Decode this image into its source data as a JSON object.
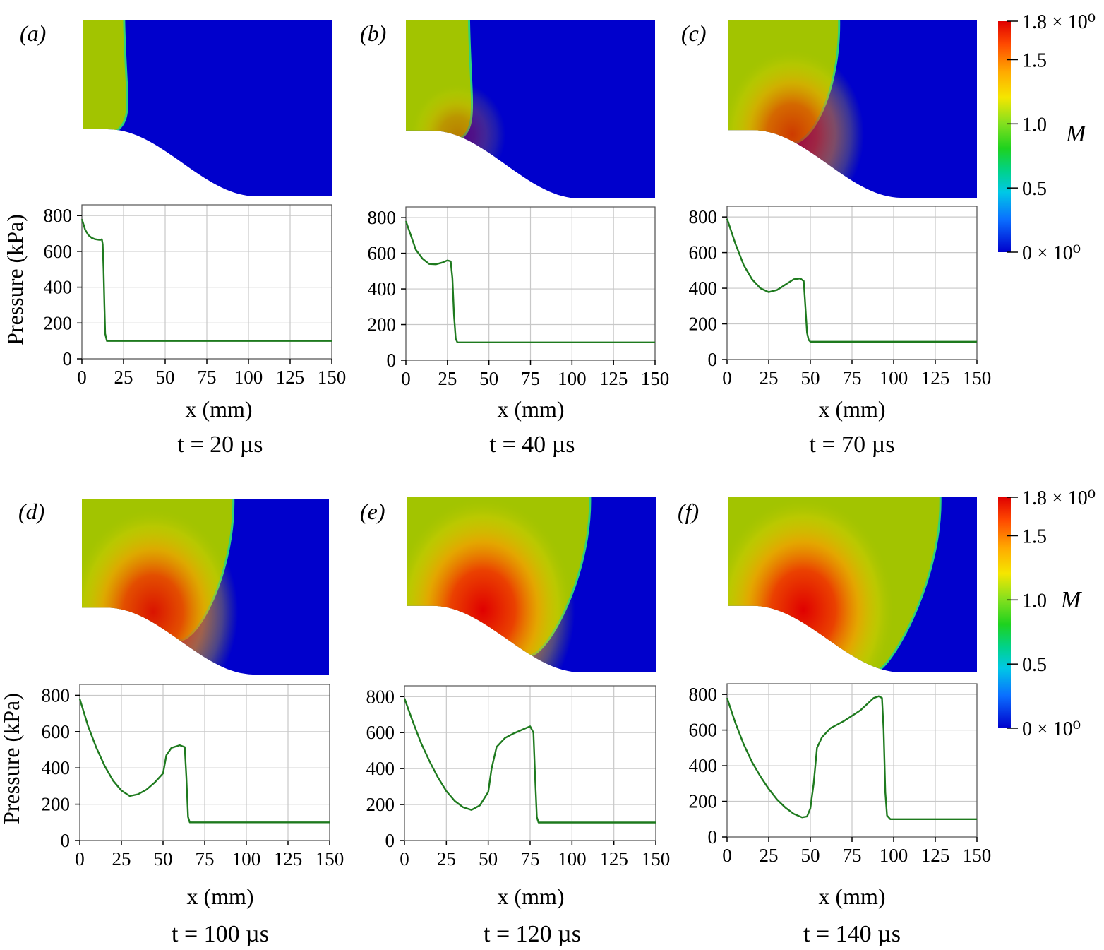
{
  "chart_data": [
    {
      "type": "line",
      "panel_label": "(a)",
      "time_label": "t = 20 µs",
      "xlabel": "x (mm)",
      "ylabel": "Pressure (kPa)",
      "xlim": [
        0,
        150
      ],
      "ylim": [
        0,
        860
      ],
      "xticks": [
        0,
        25,
        50,
        75,
        100,
        125,
        150
      ],
      "yticks": [
        0,
        200,
        400,
        600,
        800
      ],
      "grid": true,
      "color": "#1e7a1e",
      "series": [
        {
          "x": [
            0,
            2,
            4,
            6,
            8,
            10,
            11,
            12,
            12.5,
            13,
            13.5,
            14,
            15,
            17,
            20,
            30,
            150
          ],
          "y": [
            780,
            720,
            690,
            675,
            668,
            665,
            664,
            668,
            640,
            500,
            300,
            140,
            100,
            100,
            100,
            100,
            100
          ]
        }
      ]
    },
    {
      "type": "line",
      "panel_label": "(b)",
      "time_label": "t = 40 µs",
      "xlabel": "x (mm)",
      "ylabel": "",
      "xlim": [
        0,
        150
      ],
      "ylim": [
        0,
        860
      ],
      "xticks": [
        0,
        25,
        50,
        75,
        100,
        125,
        150
      ],
      "yticks": [
        0,
        200,
        400,
        600,
        800
      ],
      "grid": true,
      "color": "#1e7a1e",
      "series": [
        {
          "x": [
            0,
            3,
            6,
            10,
            14,
            18,
            22,
            25,
            27,
            28,
            29,
            30,
            31,
            33,
            40,
            150
          ],
          "y": [
            780,
            700,
            620,
            570,
            540,
            538,
            548,
            560,
            555,
            460,
            250,
            120,
            100,
            100,
            100,
            100
          ]
        }
      ]
    },
    {
      "type": "line",
      "panel_label": "(c)",
      "time_label": "t = 70 µs",
      "xlabel": "x (mm)",
      "ylabel": "",
      "xlim": [
        0,
        150
      ],
      "ylim": [
        0,
        860
      ],
      "xticks": [
        0,
        25,
        50,
        75,
        100,
        125,
        150
      ],
      "yticks": [
        0,
        200,
        400,
        600,
        800
      ],
      "grid": true,
      "color": "#1e7a1e",
      "series": [
        {
          "x": [
            0,
            5,
            10,
            15,
            20,
            25,
            30,
            35,
            40,
            44,
            46,
            47,
            48,
            49,
            50,
            52,
            60,
            150
          ],
          "y": [
            790,
            650,
            530,
            450,
            400,
            378,
            390,
            420,
            450,
            455,
            440,
            300,
            150,
            110,
            100,
            100,
            100,
            100
          ]
        }
      ]
    },
    {
      "type": "line",
      "panel_label": "(d)",
      "time_label": "t = 100 µs",
      "xlabel": "x (mm)",
      "ylabel": "Pressure (kPa)",
      "xlim": [
        0,
        150
      ],
      "ylim": [
        0,
        860
      ],
      "xticks": [
        0,
        25,
        50,
        75,
        100,
        125,
        150
      ],
      "yticks": [
        0,
        200,
        400,
        600,
        800
      ],
      "grid": true,
      "color": "#1e7a1e",
      "series": [
        {
          "x": [
            0,
            5,
            10,
            15,
            20,
            25,
            30,
            35,
            40,
            45,
            50,
            52,
            55,
            60,
            63,
            64,
            65,
            66,
            70,
            150
          ],
          "y": [
            780,
            630,
            510,
            410,
            330,
            275,
            245,
            255,
            280,
            320,
            370,
            470,
            510,
            525,
            515,
            350,
            130,
            100,
            100,
            100
          ]
        }
      ]
    },
    {
      "type": "line",
      "panel_label": "(e)",
      "time_label": "t = 120 µs",
      "xlabel": "x (mm)",
      "ylabel": "",
      "xlim": [
        0,
        150
      ],
      "ylim": [
        0,
        860
      ],
      "xticks": [
        0,
        25,
        50,
        75,
        100,
        125,
        150
      ],
      "yticks": [
        0,
        200,
        400,
        600,
        800
      ],
      "grid": true,
      "color": "#1e7a1e",
      "series": [
        {
          "x": [
            0,
            5,
            10,
            15,
            20,
            25,
            30,
            35,
            40,
            45,
            50,
            52,
            55,
            60,
            65,
            70,
            75,
            77,
            78,
            79,
            80,
            85,
            150
          ],
          "y": [
            790,
            660,
            540,
            440,
            350,
            275,
            220,
            185,
            170,
            195,
            270,
            400,
            520,
            570,
            595,
            615,
            635,
            600,
            350,
            130,
            100,
            100,
            100
          ]
        }
      ]
    },
    {
      "type": "line",
      "panel_label": "(f)",
      "time_label": "t = 140 µs",
      "xlabel": "x (mm)",
      "ylabel": "",
      "xlim": [
        0,
        150
      ],
      "ylim": [
        0,
        860
      ],
      "xticks": [
        0,
        25,
        50,
        75,
        100,
        125,
        150
      ],
      "yticks": [
        0,
        200,
        400,
        600,
        800
      ],
      "grid": true,
      "color": "#1e7a1e",
      "series": [
        {
          "x": [
            0,
            5,
            10,
            15,
            20,
            25,
            30,
            35,
            40,
            45,
            48,
            50,
            52,
            54,
            57,
            62,
            70,
            80,
            88,
            91,
            93,
            94,
            95,
            96,
            98,
            105,
            150
          ],
          "y": [
            780,
            640,
            520,
            420,
            340,
            270,
            210,
            165,
            130,
            110,
            115,
            160,
            300,
            500,
            560,
            610,
            650,
            710,
            780,
            790,
            780,
            600,
            250,
            120,
            100,
            100,
            100
          ]
        }
      ]
    }
  ],
  "colorbar": {
    "label": "M",
    "ticks": [
      "1.8 × 10⁰",
      "1.5",
      "1.0",
      "0.5",
      "0 × 10⁰"
    ],
    "tick_values": [
      1.8,
      1.5,
      1.0,
      0.5,
      0.0
    ],
    "colors": [
      "#e00000",
      "#ff6a00",
      "#ffd200",
      "#c8e600",
      "#22d222",
      "#00d2c8",
      "#0a78ff",
      "#0000cc"
    ]
  },
  "contour_colors": {
    "driver_gas": "#a2c400",
    "ambient": "#0000cc",
    "hot_core": "#e00000"
  },
  "contour_shock_x_mm": [
    25,
    38,
    67,
    92,
    110,
    128
  ],
  "contour_core_strength": [
    0.0,
    0.35,
    0.7,
    0.9,
    1.0,
    1.0
  ]
}
